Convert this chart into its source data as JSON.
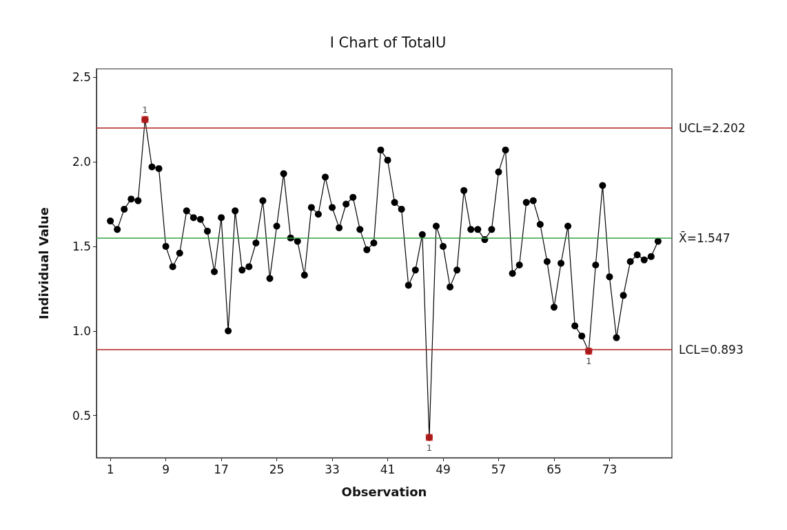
{
  "chart_data": {
    "type": "line",
    "title": "I Chart of TotalU",
    "xlabel": "Observation",
    "ylabel": "Individual Value",
    "x": [
      1,
      2,
      3,
      4,
      5,
      6,
      7,
      8,
      9,
      10,
      11,
      12,
      13,
      14,
      15,
      16,
      17,
      18,
      19,
      20,
      21,
      22,
      23,
      24,
      25,
      26,
      27,
      28,
      29,
      30,
      31,
      32,
      33,
      34,
      35,
      36,
      37,
      38,
      39,
      40,
      41,
      42,
      43,
      44,
      45,
      46,
      47,
      48,
      49,
      50,
      51,
      52,
      53,
      54,
      55,
      56,
      57,
      58,
      59,
      60,
      61,
      62,
      63,
      64,
      65,
      66,
      67,
      68,
      69,
      70,
      71,
      72,
      73,
      74,
      75,
      76,
      77,
      78,
      79,
      80
    ],
    "series": [
      {
        "color": "#000000",
        "marker": "circle",
        "line_style": "solid",
        "values": [
          1.65,
          1.6,
          1.72,
          1.78,
          1.77,
          2.25,
          1.97,
          1.96,
          1.5,
          1.38,
          1.46,
          1.71,
          1.67,
          1.66,
          1.59,
          1.35,
          1.67,
          1.0,
          1.71,
          1.36,
          1.38,
          1.52,
          1.77,
          1.31,
          1.62,
          1.93,
          1.55,
          1.53,
          1.33,
          1.73,
          1.69,
          1.91,
          1.73,
          1.61,
          1.75,
          1.79,
          1.6,
          1.48,
          1.52,
          2.07,
          2.01,
          1.76,
          1.72,
          1.27,
          1.36,
          1.57,
          0.37,
          1.62,
          1.5,
          1.26,
          1.36,
          1.83,
          1.6,
          1.6,
          1.54,
          1.6,
          1.94,
          2.07,
          1.34,
          1.39,
          1.76,
          1.77,
          1.63,
          1.41,
          1.14,
          1.4,
          1.62,
          1.03,
          0.97,
          0.88,
          1.39,
          1.86,
          1.32,
          0.96,
          1.21,
          1.41,
          1.45,
          1.42,
          1.44,
          1.53
        ]
      },
      {
        "type": "scatter",
        "color": "#d42020",
        "marker": "square",
        "x": [
          6,
          47,
          70
        ],
        "values": [
          2.25,
          0.37,
          0.88
        ]
      }
    ],
    "xlim": [
      -1,
      82
    ],
    "xticks": [
      1,
      9,
      17,
      25,
      33,
      41,
      49,
      57,
      65,
      73
    ],
    "ylim": [
      0.25,
      2.55
    ],
    "yticks": [
      0.5,
      {
        "value": 1,
        "label": "1.0"
      },
      1.5,
      {
        "value": 2,
        "label": "2.0"
      },
      2.5
    ],
    "ref_lines": [
      {
        "axis": "y",
        "value": 2.202,
        "label": "UCL=2.202",
        "color": "#b01c1c"
      },
      {
        "axis": "y",
        "value": 1.547,
        "label": "X̄=1.547",
        "color": "#2ea043"
      },
      {
        "axis": "y",
        "value": 0.893,
        "label": "LCL=0.893",
        "color": "#b01c1c"
      }
    ],
    "annotations": [
      {
        "text": "1",
        "x": 6,
        "y": 2.25
      },
      {
        "text": "1",
        "x": 47,
        "y": 0.37
      },
      {
        "text": "1",
        "x": 70,
        "y": 0.88
      }
    ],
    "grid": false
  }
}
